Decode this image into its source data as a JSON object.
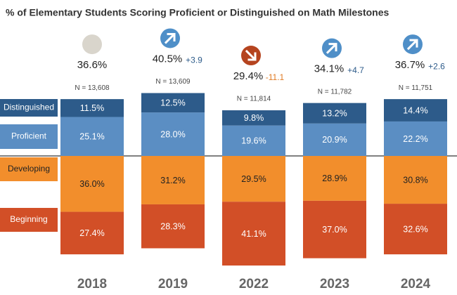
{
  "chart_data": {
    "type": "diverging_bar",
    "title": "% of Elementary Students Scoring Proficient or Distinguished on Math Milestones",
    "categories": [
      "2018",
      "2019",
      "2022",
      "2023",
      "2024"
    ],
    "series_above": [
      {
        "name": "Proficient",
        "color": "#5b8ec3",
        "label_color": "#ffffff",
        "values": [
          25.1,
          28.0,
          19.6,
          20.9,
          22.2
        ],
        "value_labels": [
          "25.1%",
          "28.0%",
          "19.6%",
          "20.9%",
          "22.2%"
        ]
      },
      {
        "name": "Distinguished",
        "color": "#2d5b8a",
        "label_color": "#ffffff",
        "values": [
          11.5,
          12.5,
          9.8,
          13.2,
          14.4
        ],
        "value_labels": [
          "11.5%",
          "12.5%",
          "9.8%",
          "13.2%",
          "14.4%"
        ]
      }
    ],
    "series_below": [
      {
        "name": "Developing",
        "color": "#f28e2c",
        "label_color": "#222222",
        "values": [
          36.0,
          31.2,
          29.5,
          28.9,
          30.8
        ],
        "value_labels": [
          "36.0%",
          "31.2%",
          "29.5%",
          "28.9%",
          "30.8%"
        ]
      },
      {
        "name": "Beginning",
        "color": "#d24f27",
        "label_color": "#ffffff",
        "values": [
          27.4,
          28.3,
          41.1,
          37.0,
          32.6
        ],
        "value_labels": [
          "27.4%",
          "28.3%",
          "41.1%",
          "37.0%",
          "32.6%"
        ]
      }
    ],
    "totals": {
      "values": [
        36.6,
        40.5,
        29.4,
        34.1,
        36.7
      ],
      "value_labels": [
        "36.6%",
        "40.5%",
        "29.4%",
        "34.1%",
        "36.7%"
      ]
    },
    "changes": {
      "values": [
        null,
        3.9,
        -11.1,
        4.7,
        2.6
      ],
      "value_labels": [
        null,
        "+3.9",
        "-11.1",
        "+4.7",
        "+2.6"
      ]
    },
    "n": {
      "values": [
        13608,
        13609,
        11814,
        11782,
        11751
      ],
      "value_labels": [
        "N = 13,608",
        "N = 13,609",
        "N = 11,814",
        "N = 11,782",
        "N = 11,751"
      ]
    }
  }
}
